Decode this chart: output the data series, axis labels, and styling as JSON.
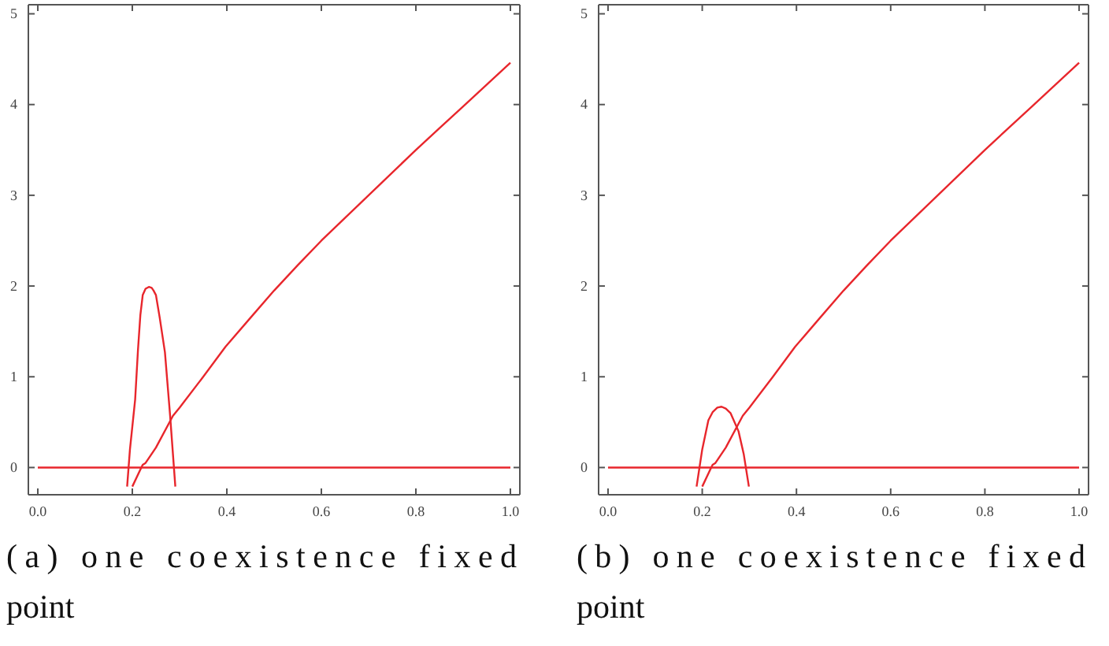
{
  "chart_data": [
    {
      "type": "line",
      "xlim": [
        -0.02,
        1.02
      ],
      "ylim": [
        -0.3,
        5.1
      ],
      "xticks": [
        {
          "value": 0,
          "label": "0.0"
        },
        {
          "value": 0.2,
          "label": "0.2"
        },
        {
          "value": 0.4,
          "label": "0.4"
        },
        {
          "value": 0.6,
          "label": "0.6"
        },
        {
          "value": 0.8,
          "label": "0.8"
        },
        {
          "value": 1,
          "label": "1.0"
        }
      ],
      "yticks": [
        0,
        1,
        2,
        3,
        4,
        5
      ],
      "marker": "none",
      "line_style": "solid",
      "grid": false,
      "series": [
        {
          "color": "#e8262c",
          "x": [
            0,
            1
          ],
          "values": [
            0,
            0
          ]
        },
        {
          "color": "#e8262c",
          "x": [
            0.2,
            0.219,
            0.222,
            0.228,
            0.25,
            0.286,
            0.3,
            0.35,
            0.397,
            0.45,
            0.5,
            0.55,
            0.6,
            0.65,
            0.7,
            0.75,
            0.8,
            0.85,
            0.9,
            0.95,
            1.0
          ],
          "values": [
            -0.21,
            0,
            0.03,
            0.05,
            0.22,
            0.57,
            0.66,
            1.0,
            1.33,
            1.65,
            1.95,
            2.23,
            2.5,
            2.75,
            3.0,
            3.25,
            3.5,
            3.74,
            3.98,
            4.22,
            4.46
          ]
        },
        {
          "color": "#e8262c",
          "x": [
            0.189,
            0.195,
            0.206,
            0.212,
            0.217,
            0.222,
            0.228,
            0.235,
            0.241,
            0.245,
            0.25,
            0.258,
            0.269,
            0.28,
            0.291
          ],
          "values": [
            -0.21,
            0.2,
            0.75,
            1.3,
            1.68,
            1.9,
            1.97,
            1.99,
            1.98,
            1.95,
            1.9,
            1.65,
            1.27,
            0.57,
            -0.21
          ]
        }
      ],
      "annotations": [
        "(a) one coexistence fixed point"
      ]
    },
    {
      "type": "line",
      "xlim": [
        -0.02,
        1.02
      ],
      "ylim": [
        -0.3,
        5.1
      ],
      "xticks": [
        {
          "value": 0,
          "label": "0.0"
        },
        {
          "value": 0.2,
          "label": "0.2"
        },
        {
          "value": 0.4,
          "label": "0.4"
        },
        {
          "value": 0.6,
          "label": "0.6"
        },
        {
          "value": 0.8,
          "label": "0.8"
        },
        {
          "value": 1,
          "label": "1.0"
        }
      ],
      "yticks": [
        0,
        1,
        2,
        3,
        4,
        5
      ],
      "marker": "none",
      "line_style": "solid",
      "grid": false,
      "series": [
        {
          "color": "#e8262c",
          "x": [
            0,
            1
          ],
          "values": [
            0,
            0
          ]
        },
        {
          "color": "#e8262c",
          "x": [
            0.2,
            0.219,
            0.222,
            0.228,
            0.25,
            0.286,
            0.3,
            0.35,
            0.397,
            0.45,
            0.5,
            0.55,
            0.6,
            0.65,
            0.7,
            0.75,
            0.8,
            0.85,
            0.9,
            0.95,
            1.0
          ],
          "values": [
            -0.21,
            0,
            0.03,
            0.05,
            0.22,
            0.57,
            0.66,
            1.0,
            1.33,
            1.65,
            1.95,
            2.23,
            2.5,
            2.75,
            3.0,
            3.25,
            3.5,
            3.74,
            3.98,
            4.22,
            4.46
          ]
        },
        {
          "color": "#e8262c",
          "x": [
            0.188,
            0.2,
            0.213,
            0.222,
            0.232,
            0.241,
            0.25,
            0.26,
            0.277,
            0.288,
            0.299
          ],
          "values": [
            -0.21,
            0.2,
            0.52,
            0.61,
            0.66,
            0.67,
            0.65,
            0.6,
            0.4,
            0.15,
            -0.21
          ]
        }
      ],
      "annotations": [
        "(b) one coexistence fixed point"
      ]
    }
  ]
}
